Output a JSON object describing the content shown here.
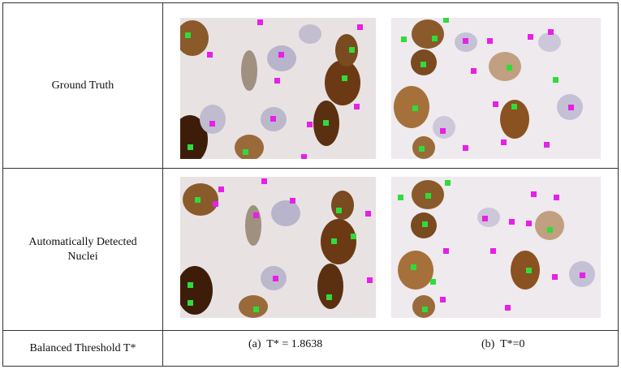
{
  "table": {
    "rows": [
      {
        "label": "Ground Truth"
      },
      {
        "label": "Automatically Detected Nuclei"
      },
      {
        "label": "Balanced Threshold T*",
        "captions": [
          "(a)  T* = 1.8638",
          "(b)  T*=0"
        ]
      }
    ]
  }
}
